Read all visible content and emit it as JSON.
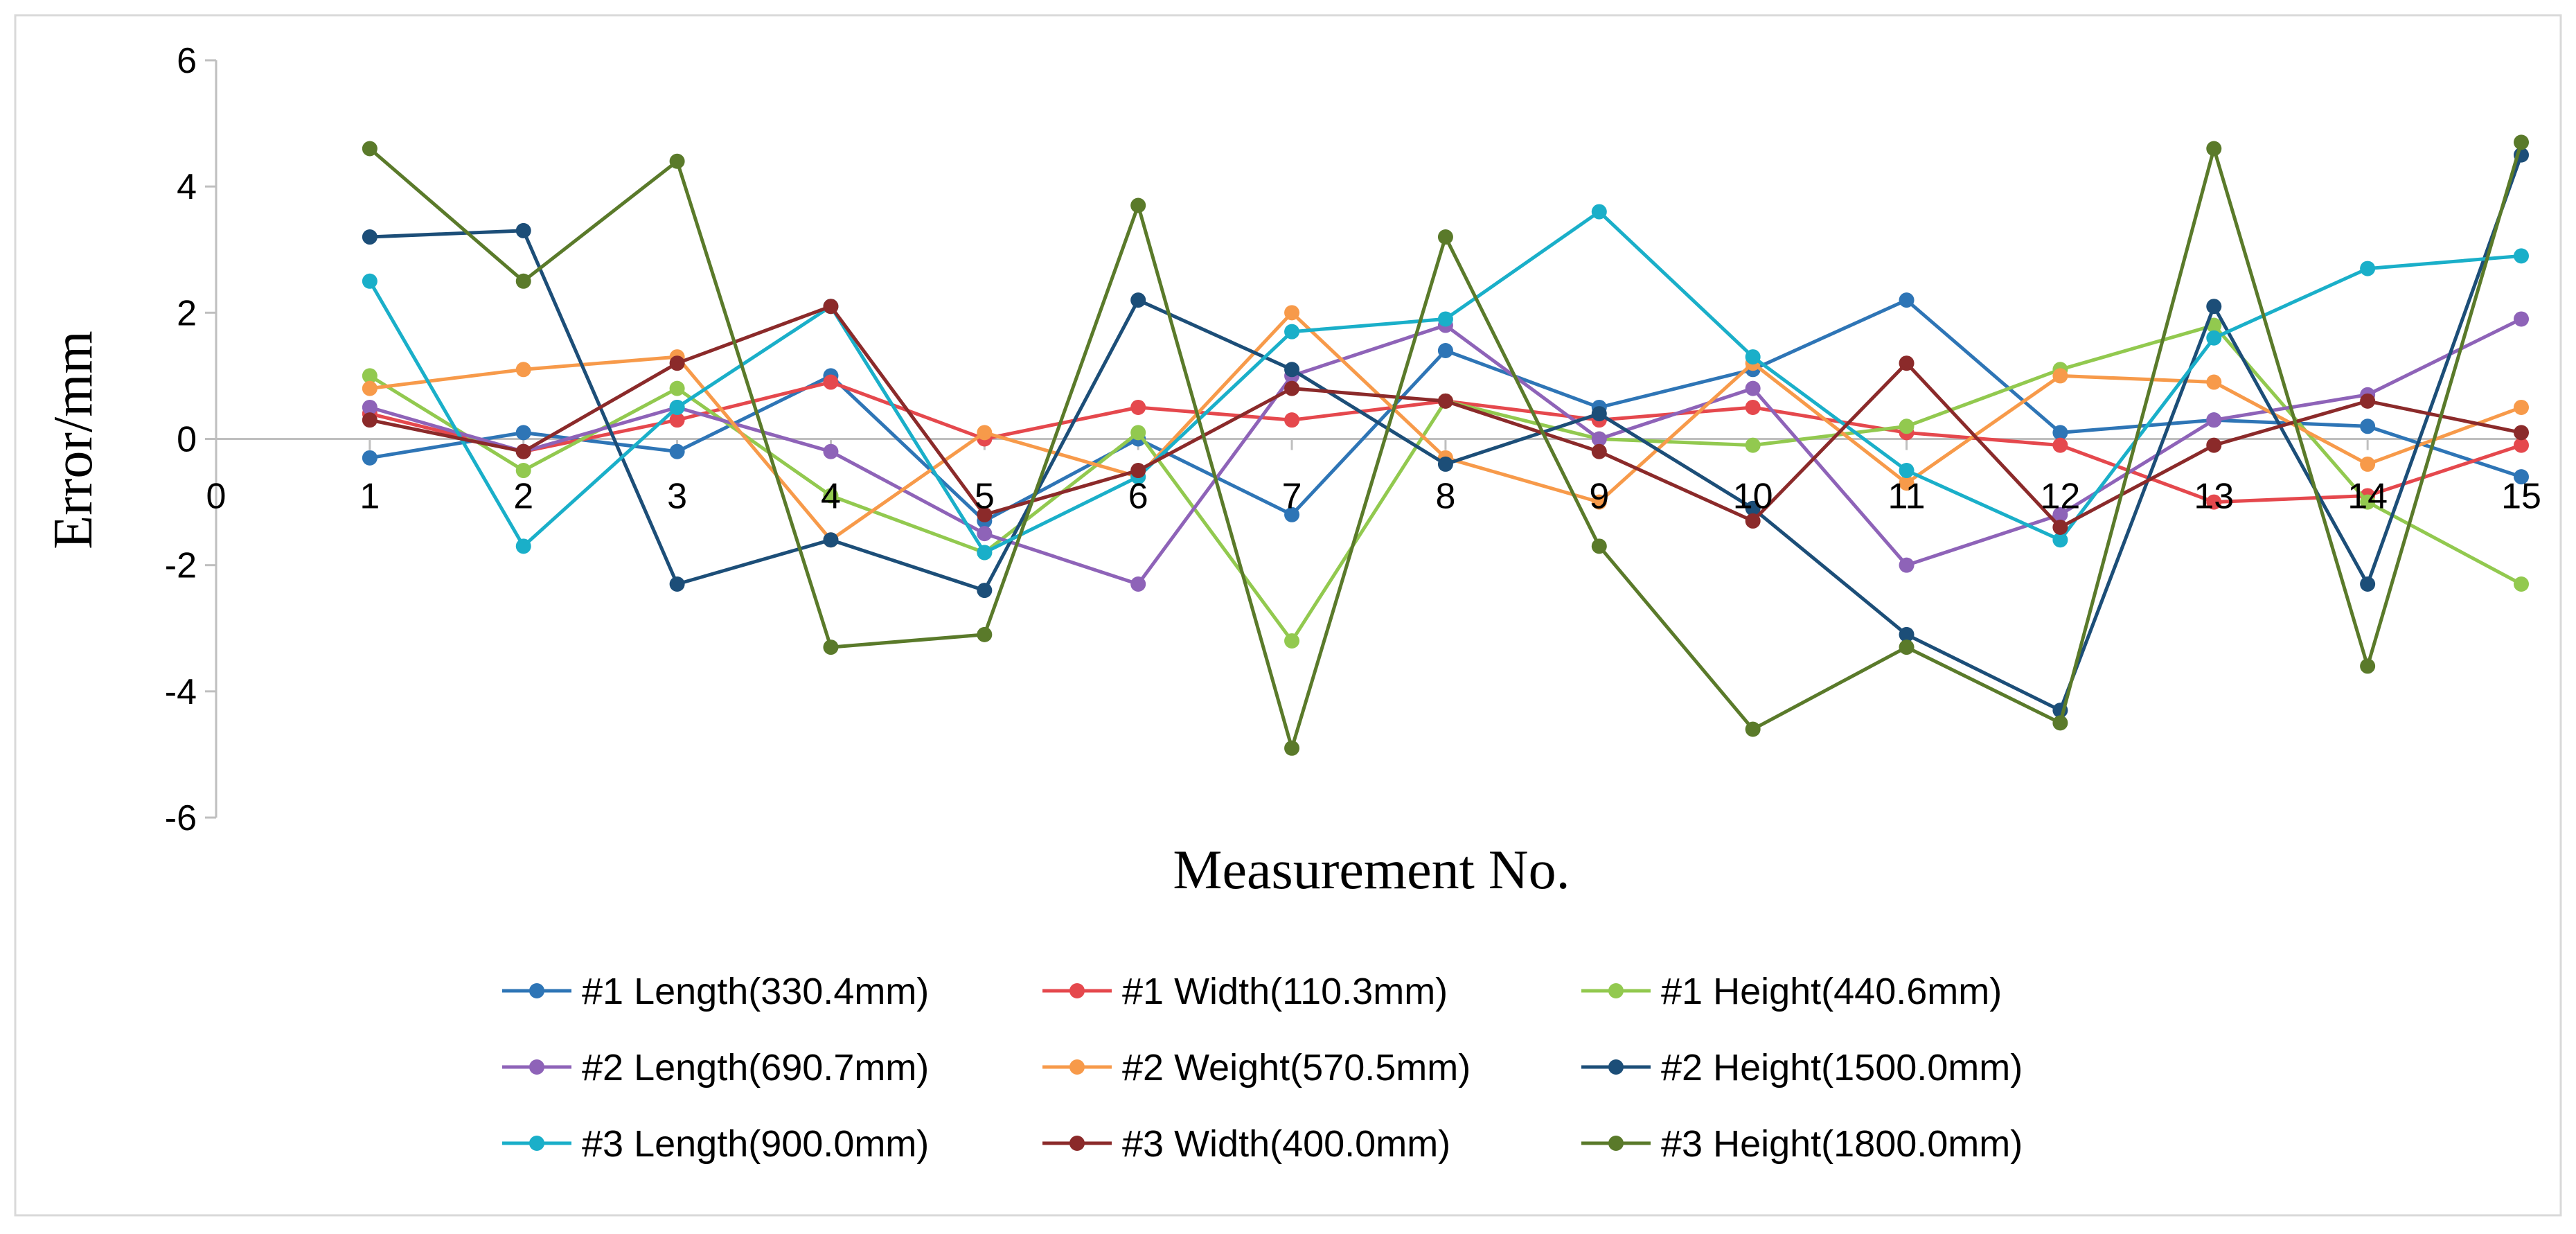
{
  "chart_data": {
    "type": "line",
    "title": "",
    "xlabel": "Measurement No.",
    "ylabel": "Error/mm",
    "x": [
      1,
      2,
      3,
      4,
      5,
      6,
      7,
      8,
      9,
      10,
      11,
      12,
      13,
      14,
      15
    ],
    "x_tick_labels": [
      "0",
      "1",
      "2",
      "3",
      "4",
      "5",
      "6",
      "7",
      "8",
      "9",
      "10",
      "11",
      "12",
      "13",
      "14",
      "15"
    ],
    "xlim": [
      0,
      15
    ],
    "ylim": [
      -6,
      6
    ],
    "y_ticks": [
      -6,
      -4,
      -2,
      0,
      2,
      4,
      6
    ],
    "y_tick_labels": [
      "-6",
      "-4",
      "-2",
      "0",
      "2",
      "4",
      "6"
    ],
    "legend_position": "bottom",
    "series": [
      {
        "name": "#1 Length(330.4mm)",
        "color": "#2E75B6",
        "values": [
          -0.3,
          0.1,
          -0.2,
          1.0,
          -1.3,
          0.0,
          -1.2,
          1.4,
          0.5,
          1.1,
          2.2,
          0.1,
          0.3,
          0.2,
          -0.6
        ]
      },
      {
        "name": "#1 Width(110.3mm)",
        "color": "#E5484D",
        "values": [
          0.4,
          -0.2,
          0.3,
          0.9,
          0.0,
          0.5,
          0.3,
          0.6,
          0.3,
          0.5,
          0.1,
          -0.1,
          -1.0,
          -0.9,
          -0.1
        ]
      },
      {
        "name": "#1 Height(440.6mm)",
        "color": "#92C94F",
        "values": [
          1.0,
          -0.5,
          0.8,
          -0.9,
          -1.8,
          0.1,
          -3.2,
          0.6,
          0.0,
          -0.1,
          0.2,
          1.1,
          1.8,
          -1.0,
          -2.3
        ]
      },
      {
        "name": "#2 Length(690.7mm)",
        "color": "#8E63B8",
        "values": [
          0.5,
          -0.2,
          0.5,
          -0.2,
          -1.5,
          -2.3,
          1.0,
          1.8,
          0.0,
          0.8,
          -2.0,
          -1.2,
          0.3,
          0.7,
          1.9
        ]
      },
      {
        "name": "#2 Weight(570.5mm)",
        "color": "#F79A4A",
        "values": [
          0.8,
          1.1,
          1.3,
          -1.6,
          0.1,
          -0.6,
          2.0,
          -0.3,
          -1.0,
          1.2,
          -0.7,
          1.0,
          0.9,
          -0.4,
          0.5
        ]
      },
      {
        "name": "#2 Height(1500.0mm)",
        "color": "#1C4E78",
        "values": [
          3.2,
          3.3,
          -2.3,
          -1.6,
          -2.4,
          2.2,
          1.1,
          -0.4,
          0.4,
          -1.1,
          -3.1,
          -4.3,
          2.1,
          -2.3,
          4.5
        ]
      },
      {
        "name": "#3 Length(900.0mm)",
        "color": "#1AAFC9",
        "values": [
          2.5,
          -1.7,
          0.5,
          2.1,
          -1.8,
          -0.6,
          1.7,
          1.9,
          3.6,
          1.3,
          -0.5,
          -1.6,
          1.6,
          2.7,
          2.9
        ]
      },
      {
        "name": "#3 Width(400.0mm)",
        "color": "#8B2A2A",
        "values": [
          0.3,
          -0.2,
          1.2,
          2.1,
          -1.2,
          -0.5,
          0.8,
          0.6,
          -0.2,
          -1.3,
          1.2,
          -1.4,
          -0.1,
          0.6,
          0.1
        ]
      },
      {
        "name": "#3 Height(1800.0mm)",
        "color": "#5A7A2A",
        "values": [
          4.6,
          2.5,
          4.4,
          -3.3,
          -3.1,
          3.7,
          -4.9,
          3.2,
          -1.7,
          -4.6,
          -3.3,
          -4.5,
          4.6,
          -3.6,
          4.7
        ]
      }
    ]
  }
}
